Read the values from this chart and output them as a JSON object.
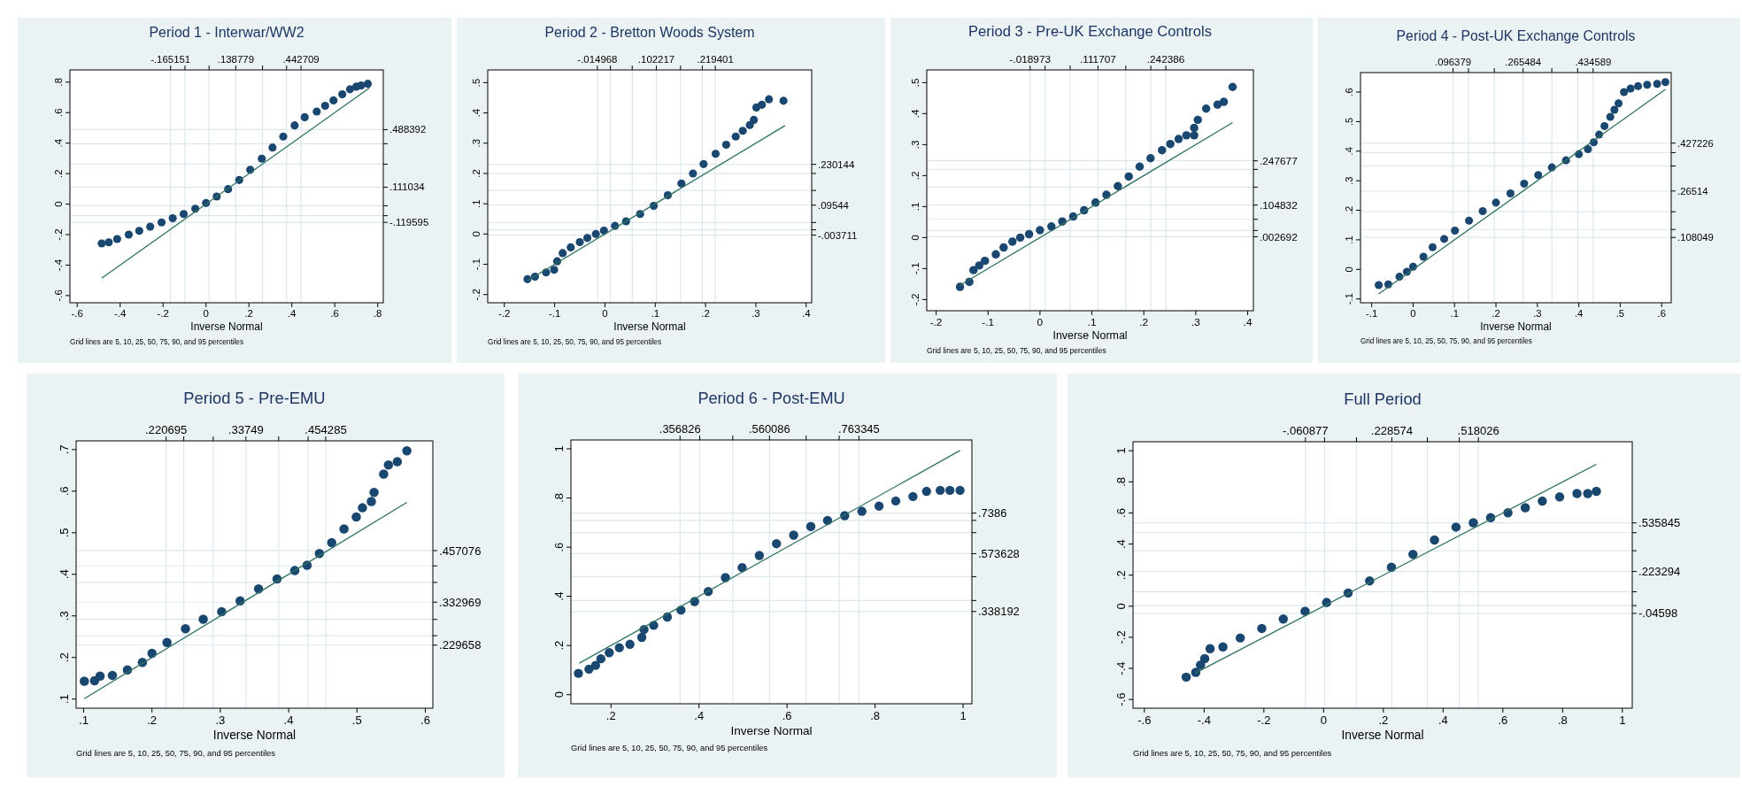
{
  "chart_data": [
    {
      "type": "scatter",
      "title": "Period 1 - Interwar/WW2",
      "xlabel": "Inverse Normal",
      "annotations": [
        "Grid lines are 5, 10, 25, 50, 75, 90, and 95 percentiles"
      ],
      "grid": true,
      "xlim": [
        -0.634,
        0.826
      ],
      "ylim": [
        -0.647,
        0.88
      ],
      "x2lim": [
        -0.634,
        0.826
      ],
      "y2lim": [
        -0.647,
        0.88
      ],
      "xticks": [
        {
          "value": -0.6,
          "label": "-.6"
        },
        {
          "value": -0.4,
          "label": "-.4"
        },
        {
          "value": -0.2,
          "label": "-.2"
        },
        {
          "value": 0,
          "label": "0"
        },
        {
          "value": 0.2,
          "label": ".2"
        },
        {
          "value": 0.4,
          "label": ".4"
        },
        {
          "value": 0.6,
          "label": ".6"
        },
        {
          "value": 0.8,
          "label": ".8"
        }
      ],
      "yticks": [
        {
          "value": -0.6,
          "label": "-.6"
        },
        {
          "value": -0.4,
          "label": "-.4"
        },
        {
          "value": -0.2,
          "label": "-.2"
        },
        {
          "value": 0,
          "label": "0"
        },
        {
          "value": 0.2,
          "label": ".2"
        },
        {
          "value": 0.4,
          "label": ".4"
        },
        {
          "value": 0.6,
          "label": ".6"
        },
        {
          "value": 0.8,
          "label": ".8"
        }
      ],
      "x2ticks": [
        {
          "value": -0.165151,
          "label": "-.165151"
        },
        {
          "value": -0.098,
          "label": null
        },
        {
          "value": 0.0142,
          "label": null
        },
        {
          "value": 0.138779,
          "label": ".138779"
        },
        {
          "value": 0.2634,
          "label": null
        },
        {
          "value": 0.3756,
          "label": null
        },
        {
          "value": 0.442709,
          "label": ".442709"
        }
      ],
      "y2ticks": [
        {
          "value": -0.119595,
          "label": "-.119595"
        },
        {
          "value": -0.076,
          "label": null
        },
        {
          "value": -0.011,
          "label": null
        },
        {
          "value": 0.111034,
          "label": ".111034"
        },
        {
          "value": 0.262,
          "label": null
        },
        {
          "value": 0.396,
          "label": null
        },
        {
          "value": 0.488392,
          "label": ".488392"
        }
      ],
      "series": [
        {
          "type": "scatter",
          "marker": "circle",
          "color": "#1a476f",
          "x": [
            -0.486,
            -0.453,
            -0.414,
            -0.36,
            -0.311,
            -0.26,
            -0.207,
            -0.155,
            -0.104,
            -0.05,
            0,
            0.05,
            0.103,
            0.155,
            0.206,
            0.26,
            0.31,
            0.36,
            0.413,
            0.46,
            0.516,
            0.555,
            0.594,
            0.635,
            0.671,
            0.7,
            0.723,
            0.754
          ],
          "values": [
            -0.258,
            -0.251,
            -0.229,
            -0.2,
            -0.175,
            -0.148,
            -0.12,
            -0.093,
            -0.065,
            -0.03,
            0.007,
            0.05,
            0.098,
            0.158,
            0.225,
            0.298,
            0.371,
            0.443,
            0.516,
            0.57,
            0.607,
            0.645,
            0.68,
            0.72,
            0.753,
            0.77,
            0.778,
            0.789
          ]
        },
        {
          "type": "line",
          "marker": "none",
          "color": "#2e7262",
          "x": [
            -0.486,
            0.762
          ],
          "values": [
            -0.486,
            0.762
          ]
        }
      ]
    },
    {
      "type": "scatter",
      "title": "Period 2 - Bretton Woods System",
      "xlabel": "Inverse Normal",
      "annotations": [
        "Grid lines are 5, 10, 25, 50, 75, 90, and 95 percentiles"
      ],
      "grid": true,
      "xlim": [
        -0.233,
        0.411
      ],
      "ylim": [
        -0.227,
        0.542
      ],
      "x2lim": [
        -0.233,
        0.411
      ],
      "y2lim": [
        -0.227,
        0.542
      ],
      "xticks": [
        {
          "value": -0.2,
          "label": "-.2"
        },
        {
          "value": -0.1,
          "label": "-.1"
        },
        {
          "value": 0,
          "label": "0"
        },
        {
          "value": 0.1,
          "label": ".1"
        },
        {
          "value": 0.2,
          "label": ".2"
        },
        {
          "value": 0.3,
          "label": ".3"
        },
        {
          "value": 0.4,
          "label": ".4"
        }
      ],
      "yticks": [
        {
          "value": -0.2,
          "label": "-.2"
        },
        {
          "value": -0.1,
          "label": "-.1"
        },
        {
          "value": 0,
          "label": "0"
        },
        {
          "value": 0.1,
          "label": ".1"
        },
        {
          "value": 0.2,
          "label": ".2"
        },
        {
          "value": 0.3,
          "label": ".3"
        },
        {
          "value": 0.4,
          "label": ".4"
        },
        {
          "value": 0.5,
          "label": ".5"
        }
      ],
      "x2ticks": [
        {
          "value": -0.014968,
          "label": "-.014968"
        },
        {
          "value": 0.0109,
          "label": null
        },
        {
          "value": 0.0542,
          "label": null
        },
        {
          "value": 0.102217,
          "label": ".102217"
        },
        {
          "value": 0.1503,
          "label": null
        },
        {
          "value": 0.1935,
          "label": null
        },
        {
          "value": 0.219401,
          "label": ".219401"
        }
      ],
      "y2ticks": [
        {
          "value": -0.003711,
          "label": "-.003711"
        },
        {
          "value": 0.014,
          "label": null
        },
        {
          "value": 0.038,
          "label": null
        },
        {
          "value": 0.09544,
          "label": ".09544"
        },
        {
          "value": 0.144,
          "label": null
        },
        {
          "value": 0.2,
          "label": null
        },
        {
          "value": 0.230144,
          "label": ".230144"
        }
      ],
      "series": [
        {
          "type": "scatter",
          "marker": "circle",
          "color": "#1a476f",
          "x": [
            -0.154,
            -0.139,
            -0.117,
            -0.101,
            -0.095,
            -0.084,
            -0.068,
            -0.05,
            -0.035,
            -0.018,
            -0.002,
            0.02,
            0.042,
            0.07,
            0.097,
            0.125,
            0.152,
            0.175,
            0.196,
            0.22,
            0.241,
            0.26,
            0.274,
            0.288,
            0.296,
            0.301,
            0.312,
            0.326,
            0.355
          ],
          "values": [
            -0.149,
            -0.141,
            -0.127,
            -0.118,
            -0.09,
            -0.063,
            -0.044,
            -0.027,
            -0.013,
            0,
            0.011,
            0.027,
            0.042,
            0.066,
            0.093,
            0.128,
            0.167,
            0.2,
            0.231,
            0.265,
            0.295,
            0.322,
            0.341,
            0.36,
            0.377,
            0.418,
            0.427,
            0.445,
            0.44
          ]
        },
        {
          "type": "line",
          "marker": "none",
          "color": "#2e7262",
          "x": [
            -0.154,
            0.358
          ],
          "values": [
            -0.154,
            0.358
          ]
        }
      ]
    },
    {
      "type": "scatter",
      "title": "Period 3 - Pre-UK Exchange Controls",
      "xlabel": "Inverse Normal",
      "annotations": [
        "Grid lines are 5, 10, 25, 50, 75, 90, and 95 percentiles"
      ],
      "grid": true,
      "xlim": [
        -0.218,
        0.411
      ],
      "ylim": [
        -0.236,
        0.541
      ],
      "x2lim": [
        -0.218,
        0.411
      ],
      "y2lim": [
        -0.236,
        0.541
      ],
      "xticks": [
        {
          "value": -0.2,
          "label": "-.2"
        },
        {
          "value": -0.1,
          "label": "-.1"
        },
        {
          "value": 0,
          "label": "0"
        },
        {
          "value": 0.1,
          "label": ".1"
        },
        {
          "value": 0.2,
          "label": ".2"
        },
        {
          "value": 0.3,
          "label": ".3"
        },
        {
          "value": 0.4,
          "label": ".4"
        }
      ],
      "yticks": [
        {
          "value": -0.2,
          "label": "-.2"
        },
        {
          "value": -0.1,
          "label": "-.1"
        },
        {
          "value": 0,
          "label": "0"
        },
        {
          "value": 0.1,
          "label": ".1"
        },
        {
          "value": 0.2,
          "label": ".2"
        },
        {
          "value": 0.3,
          "label": ".3"
        },
        {
          "value": 0.4,
          "label": ".4"
        },
        {
          "value": 0.5,
          "label": ".5"
        }
      ],
      "x2ticks": [
        {
          "value": -0.018973,
          "label": "-.018973"
        },
        {
          "value": 0.0099,
          "label": null
        },
        {
          "value": 0.0581,
          "label": null
        },
        {
          "value": 0.111707,
          "label": ".111707"
        },
        {
          "value": 0.1653,
          "label": null
        },
        {
          "value": 0.2135,
          "label": null
        },
        {
          "value": 0.242386,
          "label": ".242386"
        }
      ],
      "y2ticks": [
        {
          "value": 0.002692,
          "label": ".002692"
        },
        {
          "value": 0.023,
          "label": null
        },
        {
          "value": 0.059,
          "label": null
        },
        {
          "value": 0.104832,
          "label": ".104832"
        },
        {
          "value": 0.163,
          "label": null
        },
        {
          "value": 0.22,
          "label": null
        },
        {
          "value": 0.247677,
          "label": ".247677"
        }
      ],
      "series": [
        {
          "type": "scatter",
          "marker": "circle",
          "color": "#1a476f",
          "x": [
            -0.154,
            -0.136,
            -0.128,
            -0.117,
            -0.106,
            -0.085,
            -0.07,
            -0.053,
            -0.038,
            -0.021,
            0,
            0.022,
            0.043,
            0.064,
            0.085,
            0.107,
            0.128,
            0.15,
            0.171,
            0.192,
            0.213,
            0.235,
            0.251,
            0.267,
            0.282,
            0.297,
            0.297,
            0.304,
            0.32,
            0.342,
            0.354,
            0.371
          ],
          "values": [
            -0.159,
            -0.143,
            -0.105,
            -0.09,
            -0.075,
            -0.054,
            -0.032,
            -0.013,
            0,
            0.011,
            0.024,
            0.036,
            0.052,
            0.068,
            0.088,
            0.113,
            0.138,
            0.166,
            0.197,
            0.229,
            0.256,
            0.282,
            0.302,
            0.318,
            0.33,
            0.33,
            0.354,
            0.38,
            0.416,
            0.429,
            0.438,
            0.486
          ]
        },
        {
          "type": "line",
          "marker": "none",
          "color": "#2e7262",
          "x": [
            -0.154,
            0.371
          ],
          "values": [
            -0.154,
            0.371
          ]
        }
      ]
    },
    {
      "type": "scatter",
      "title": "Period 4 - Post-UK Exchange Controls",
      "xlabel": "Inverse Normal",
      "annotations": [
        "Grid lines are 5, 10, 25, 50, 75, 90, and 95 percentiles"
      ],
      "grid": true,
      "xlim": [
        -0.127,
        0.623
      ],
      "ylim": [
        -0.113,
        0.666
      ],
      "x2lim": [
        -0.127,
        0.623
      ],
      "y2lim": [
        -0.113,
        0.666
      ],
      "xticks": [
        {
          "value": -0.1,
          "label": "-.1"
        },
        {
          "value": 0,
          "label": "0"
        },
        {
          "value": 0.1,
          "label": ".1"
        },
        {
          "value": 0.2,
          "label": ".2"
        },
        {
          "value": 0.3,
          "label": ".3"
        },
        {
          "value": 0.4,
          "label": ".4"
        },
        {
          "value": 0.5,
          "label": ".5"
        },
        {
          "value": 0.6,
          "label": ".6"
        }
      ],
      "yticks": [
        {
          "value": -0.1,
          "label": "-.1"
        },
        {
          "value": 0,
          "label": "0"
        },
        {
          "value": 0.1,
          "label": ".1"
        },
        {
          "value": 0.2,
          "label": ".2"
        },
        {
          "value": 0.3,
          "label": ".3"
        },
        {
          "value": 0.4,
          "label": ".4"
        },
        {
          "value": 0.5,
          "label": ".5"
        },
        {
          "value": 0.6,
          "label": ".6"
        }
      ],
      "x2ticks": [
        {
          "value": 0.096379,
          "label": ".096379"
        },
        {
          "value": 0.1337,
          "label": null
        },
        {
          "value": 0.1961,
          "label": null
        },
        {
          "value": 0.265484,
          "label": ".265484"
        },
        {
          "value": 0.3348,
          "label": null
        },
        {
          "value": 0.3972,
          "label": null
        },
        {
          "value": 0.434589,
          "label": ".434589"
        }
      ],
      "y2ticks": [
        {
          "value": 0.108049,
          "label": ".108049"
        },
        {
          "value": 0.135,
          "label": null
        },
        {
          "value": 0.195,
          "label": null
        },
        {
          "value": 0.26514,
          "label": ".26514"
        },
        {
          "value": 0.35,
          "label": null
        },
        {
          "value": 0.395,
          "label": null
        },
        {
          "value": 0.427226,
          "label": ".427226"
        }
      ],
      "series": [
        {
          "type": "scatter",
          "marker": "circle",
          "color": "#1a476f",
          "x": [
            -0.083,
            -0.06,
            -0.033,
            -0.015,
            0,
            0.025,
            0.047,
            0.075,
            0.101,
            0.135,
            0.168,
            0.2,
            0.235,
            0.268,
            0.302,
            0.335,
            0.369,
            0.4,
            0.422,
            0.436,
            0.449,
            0.462,
            0.476,
            0.486,
            0.496,
            0.509,
            0.525,
            0.543,
            0.565,
            0.589,
            0.609
          ],
          "values": [
            -0.053,
            -0.051,
            -0.025,
            -0.008,
            0.009,
            0.043,
            0.075,
            0.103,
            0.131,
            0.165,
            0.197,
            0.226,
            0.257,
            0.29,
            0.319,
            0.345,
            0.369,
            0.39,
            0.407,
            0.43,
            0.456,
            0.485,
            0.516,
            0.54,
            0.562,
            0.6,
            0.612,
            0.62,
            0.625,
            0.628,
            0.634
          ]
        },
        {
          "type": "line",
          "marker": "none",
          "color": "#2e7262",
          "x": [
            -0.083,
            0.609
          ],
          "values": [
            -0.083,
            0.609
          ]
        }
      ]
    },
    {
      "type": "scatter",
      "title": "Period 5 - Pre-EMU",
      "xlabel": "Inverse Normal",
      "annotations": [
        "Grid lines are 5, 10, 25, 50, 75, 90, and 95 percentiles"
      ],
      "grid": true,
      "xlim": [
        0.089,
        0.611
      ],
      "ylim": [
        0.078,
        0.721
      ],
      "x2lim": [
        0.089,
        0.611
      ],
      "y2lim": [
        0.078,
        0.721
      ],
      "xticks": [
        {
          "value": 0.1,
          "label": ".1"
        },
        {
          "value": 0.2,
          "label": ".2"
        },
        {
          "value": 0.3,
          "label": ".3"
        },
        {
          "value": 0.4,
          "label": ".4"
        },
        {
          "value": 0.5,
          "label": ".5"
        },
        {
          "value": 0.6,
          "label": ".6"
        }
      ],
      "yticks": [
        {
          "value": 0.1,
          "label": ".1"
        },
        {
          "value": 0.2,
          "label": ".2"
        },
        {
          "value": 0.3,
          "label": ".3"
        },
        {
          "value": 0.4,
          "label": ".4"
        },
        {
          "value": 0.5,
          "label": ".5"
        },
        {
          "value": 0.6,
          "label": ".6"
        },
        {
          "value": 0.7,
          "label": ".7"
        }
      ],
      "x2ticks": [
        {
          "value": 0.220695,
          "label": ".220695"
        },
        {
          "value": 0.2465,
          "label": null
        },
        {
          "value": 0.2896,
          "label": null
        },
        {
          "value": 0.33749,
          "label": ".33749"
        },
        {
          "value": 0.3854,
          "label": null
        },
        {
          "value": 0.4285,
          "label": null
        },
        {
          "value": 0.454285,
          "label": ".454285"
        }
      ],
      "y2ticks": [
        {
          "value": 0.229658,
          "label": ".229658"
        },
        {
          "value": 0.2524,
          "label": null
        },
        {
          "value": 0.2915,
          "label": null
        },
        {
          "value": 0.332969,
          "label": ".332969"
        },
        {
          "value": 0.3806,
          "label": null
        },
        {
          "value": 0.4203,
          "label": null
        },
        {
          "value": 0.457076,
          "label": ".457076"
        }
      ],
      "series": [
        {
          "type": "scatter",
          "marker": "circle",
          "color": "#1a476f",
          "x": [
            0.101,
            0.116,
            0.124,
            0.142,
            0.164,
            0.186,
            0.2,
            0.222,
            0.249,
            0.275,
            0.302,
            0.329,
            0.356,
            0.383,
            0.409,
            0.427,
            0.445,
            0.463,
            0.481,
            0.499,
            0.508,
            0.521,
            0.525,
            0.539,
            0.546,
            0.559,
            0.573
          ],
          "values": [
            0.143,
            0.144,
            0.155,
            0.157,
            0.17,
            0.188,
            0.21,
            0.236,
            0.269,
            0.292,
            0.31,
            0.336,
            0.365,
            0.389,
            0.409,
            0.422,
            0.45,
            0.476,
            0.509,
            0.538,
            0.56,
            0.575,
            0.597,
            0.641,
            0.663,
            0.671,
            0.697
          ]
        },
        {
          "type": "line",
          "marker": "none",
          "color": "#2e7262",
          "x": [
            0.101,
            0.573
          ],
          "values": [
            0.101,
            0.573
          ]
        }
      ]
    },
    {
      "type": "scatter",
      "title": "Period 6 - Post-EMU",
      "xlabel": "Inverse Normal",
      "annotations": [
        "Grid lines are 5, 10, 25, 50, 75, 90, and 95 percentiles"
      ],
      "grid": true,
      "xlim": [
        0.109,
        1.02
      ],
      "ylim": [
        -0.037,
        1.036
      ],
      "x2lim": [
        0.109,
        1.02
      ],
      "y2lim": [
        -0.037,
        1.036
      ],
      "xticks": [
        {
          "value": 0.2,
          "label": ".2"
        },
        {
          "value": 0.4,
          "label": ".4"
        },
        {
          "value": 0.6,
          "label": ".6"
        },
        {
          "value": 0.8,
          "label": ".8"
        },
        {
          "value": 1,
          "label": "1"
        }
      ],
      "yticks": [
        {
          "value": 0,
          "label": "0"
        },
        {
          "value": 0.2,
          "label": ".2"
        },
        {
          "value": 0.4,
          "label": ".4"
        },
        {
          "value": 0.6,
          "label": ".6"
        },
        {
          "value": 0.8,
          "label": ".8"
        },
        {
          "value": 1,
          "label": "1"
        }
      ],
      "x2ticks": [
        {
          "value": 0.356826,
          "label": ".356826"
        },
        {
          "value": 0.4017,
          "label": null
        },
        {
          "value": 0.4767,
          "label": null
        },
        {
          "value": 0.560086,
          "label": ".560086"
        },
        {
          "value": 0.6434,
          "label": null
        },
        {
          "value": 0.7184,
          "label": null
        },
        {
          "value": 0.763345,
          "label": ".763345"
        }
      ],
      "y2ticks": [
        {
          "value": 0.338192,
          "label": ".338192"
        },
        {
          "value": 0.383,
          "label": null
        },
        {
          "value": 0.48,
          "label": null
        },
        {
          "value": 0.573628,
          "label": ".573628"
        },
        {
          "value": 0.659,
          "label": null
        },
        {
          "value": 0.709,
          "label": null
        },
        {
          "value": 0.7386,
          "label": ".7386"
        }
      ],
      "series": [
        {
          "type": "scatter",
          "marker": "circle",
          "color": "#1a476f",
          "x": [
            0.126,
            0.15,
            0.165,
            0.177,
            0.196,
            0.219,
            0.243,
            0.27,
            0.275,
            0.297,
            0.328,
            0.359,
            0.39,
            0.421,
            0.46,
            0.498,
            0.537,
            0.576,
            0.615,
            0.654,
            0.692,
            0.731,
            0.77,
            0.809,
            0.847,
            0.886,
            0.917,
            0.948,
            0.97,
            0.993
          ],
          "values": [
            0.087,
            0.104,
            0.119,
            0.146,
            0.171,
            0.191,
            0.205,
            0.233,
            0.265,
            0.282,
            0.316,
            0.344,
            0.379,
            0.42,
            0.476,
            0.517,
            0.566,
            0.614,
            0.649,
            0.684,
            0.709,
            0.728,
            0.746,
            0.767,
            0.788,
            0.806,
            0.827,
            0.831,
            0.831,
            0.831
          ]
        },
        {
          "type": "line",
          "marker": "none",
          "color": "#2e7262",
          "x": [
            0.128,
            0.993
          ],
          "values": [
            0.128,
            0.993
          ]
        }
      ]
    },
    {
      "type": "scatter",
      "title": "Full Period",
      "xlabel": "Inverse Normal",
      "annotations": [
        "Grid lines are 5, 10, 25, 50, 75, 90, and 95 percentiles"
      ],
      "grid": true,
      "xlim": [
        -0.638,
        1.033
      ],
      "ylim": [
        -0.656,
        1.058
      ],
      "x2lim": [
        -0.638,
        1.033
      ],
      "y2lim": [
        -0.656,
        1.058
      ],
      "xticks": [
        {
          "value": -0.6,
          "label": "-.6"
        },
        {
          "value": -0.4,
          "label": "-.4"
        },
        {
          "value": -0.2,
          "label": "-.2"
        },
        {
          "value": 0,
          "label": "0"
        },
        {
          "value": 0.2,
          "label": ".2"
        },
        {
          "value": 0.4,
          "label": ".4"
        },
        {
          "value": 0.6,
          "label": ".6"
        },
        {
          "value": 0.8,
          "label": ".8"
        },
        {
          "value": 1,
          "label": "1"
        }
      ],
      "yticks": [
        {
          "value": -0.6,
          "label": "-.6"
        },
        {
          "value": -0.4,
          "label": "-.4"
        },
        {
          "value": -0.2,
          "label": "-.2"
        },
        {
          "value": 0,
          "label": "0"
        },
        {
          "value": 0.2,
          "label": ".2"
        },
        {
          "value": 0.4,
          "label": ".4"
        },
        {
          "value": 0.6,
          "label": ".6"
        },
        {
          "value": 0.8,
          "label": ".8"
        },
        {
          "value": 1,
          "label": "1"
        }
      ],
      "x2ticks": [
        {
          "value": -0.060877,
          "label": "-.060877"
        },
        {
          "value": 0.0031,
          "label": null
        },
        {
          "value": 0.1099,
          "label": null
        },
        {
          "value": 0.228574,
          "label": ".228574"
        },
        {
          "value": 0.3473,
          "label": null
        },
        {
          "value": 0.4541,
          "label": null
        },
        {
          "value": 0.518026,
          "label": ".518026"
        }
      ],
      "y2ticks": [
        {
          "value": -0.04598,
          "label": "-.04598"
        },
        {
          "value": 0.004,
          "label": null
        },
        {
          "value": 0.093,
          "label": null
        },
        {
          "value": 0.223294,
          "label": ".223294"
        },
        {
          "value": 0.357,
          "label": null
        },
        {
          "value": 0.473,
          "label": null
        },
        {
          "value": 0.535845,
          "label": ".535845"
        }
      ],
      "series": [
        {
          "type": "scatter",
          "marker": "circle",
          "color": "#1a476f",
          "x": [
            -0.46,
            -0.428,
            -0.412,
            -0.398,
            -0.38,
            -0.337,
            -0.279,
            -0.207,
            -0.135,
            -0.062,
            0.01,
            0.082,
            0.154,
            0.227,
            0.299,
            0.371,
            0.443,
            0.501,
            0.559,
            0.617,
            0.675,
            0.732,
            0.79,
            0.848,
            0.884,
            0.913
          ],
          "values": [
            -0.456,
            -0.425,
            -0.378,
            -0.337,
            -0.273,
            -0.262,
            -0.204,
            -0.143,
            -0.082,
            -0.032,
            0.024,
            0.085,
            0.163,
            0.251,
            0.334,
            0.426,
            0.509,
            0.537,
            0.57,
            0.601,
            0.634,
            0.676,
            0.703,
            0.725,
            0.725,
            0.739
          ]
        },
        {
          "type": "line",
          "marker": "none",
          "color": "#2e7262",
          "x": [
            -0.43,
            0.913
          ],
          "values": [
            -0.43,
            0.913
          ]
        }
      ]
    }
  ]
}
